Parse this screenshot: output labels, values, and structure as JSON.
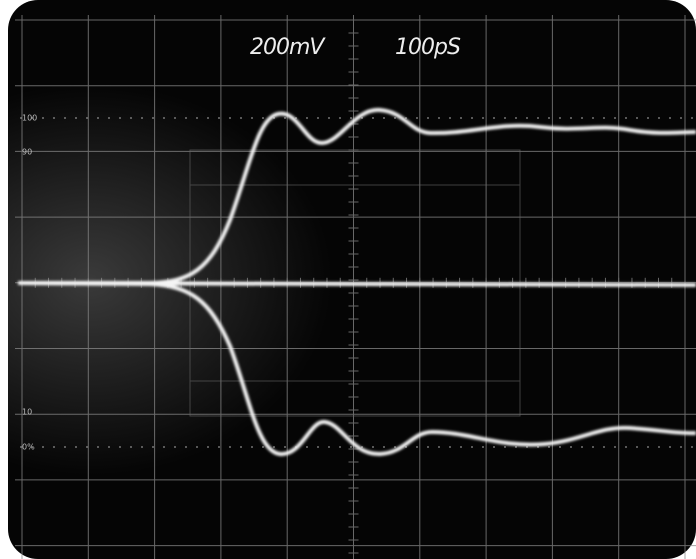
{
  "header": {
    "volts_per_div": "200mV",
    "time_per_div": "100pS"
  },
  "graticule_labels": [
    "100",
    "90",
    "10",
    "0%"
  ]
}
